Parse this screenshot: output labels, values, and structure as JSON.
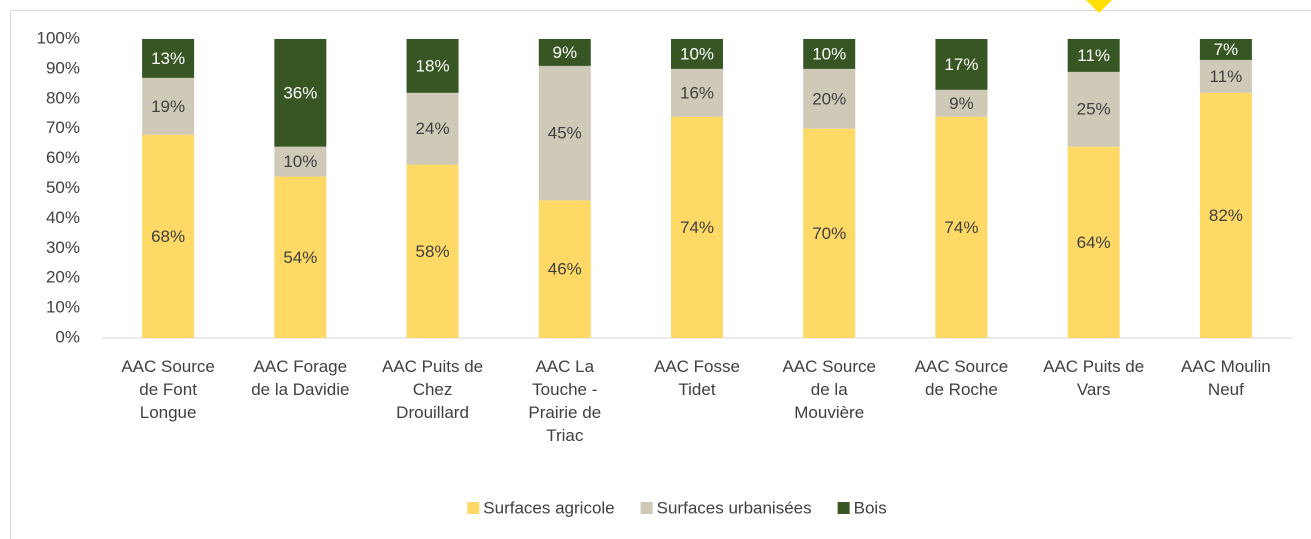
{
  "chart_data": {
    "type": "stacked_bar",
    "categories": [
      "AAC Source de Font Longue",
      "AAC Forage de la Davidie",
      "AAC Puits de Chez Drouillard",
      "AAC La Touche - Prairie de Triac",
      "AAC Fosse Tidet",
      "AAC Source de la Mouvière",
      "AAC Source de Roche",
      "AAC Puits de Vars",
      "AAC Moulin Neuf"
    ],
    "series": [
      {
        "name": "Surfaces agricole",
        "color": "#ffd966",
        "values": [
          68,
          54,
          58,
          46,
          74,
          70,
          74,
          64,
          82
        ],
        "value_labels": [
          "68%",
          "54%",
          "58%",
          "46%",
          "74%",
          "70%",
          "74%",
          "64%",
          "82%"
        ]
      },
      {
        "name": "Surfaces urbanisées",
        "color": "#cfc9b8",
        "values": [
          19,
          10,
          24,
          45,
          16,
          20,
          9,
          25,
          11
        ],
        "value_labels": [
          "19%",
          "10%",
          "24%",
          "45%",
          "16%",
          "20%",
          "9%",
          "25%",
          "11%"
        ]
      },
      {
        "name": "Bois",
        "color": "#375623",
        "values": [
          13,
          36,
          18,
          9,
          10,
          10,
          17,
          11,
          7
        ],
        "value_labels": [
          "13%",
          "36%",
          "18%",
          "9%",
          "10%",
          "10%",
          "17%",
          "11%",
          "7%"
        ]
      }
    ],
    "ylim": [
      0,
      100
    ],
    "yticks": [
      {
        "value": 0,
        "label": "0%"
      },
      {
        "value": 10,
        "label": "10%"
      },
      {
        "value": 20,
        "label": "20%"
      },
      {
        "value": 30,
        "label": "30%"
      },
      {
        "value": 40,
        "label": "40%"
      },
      {
        "value": 50,
        "label": "50%"
      },
      {
        "value": 60,
        "label": "60%"
      },
      {
        "value": 70,
        "label": "70%"
      },
      {
        "value": 80,
        "label": "80%"
      },
      {
        "value": 90,
        "label": "90%"
      },
      {
        "value": 100,
        "label": "100%"
      }
    ],
    "legend": "bottom"
  }
}
